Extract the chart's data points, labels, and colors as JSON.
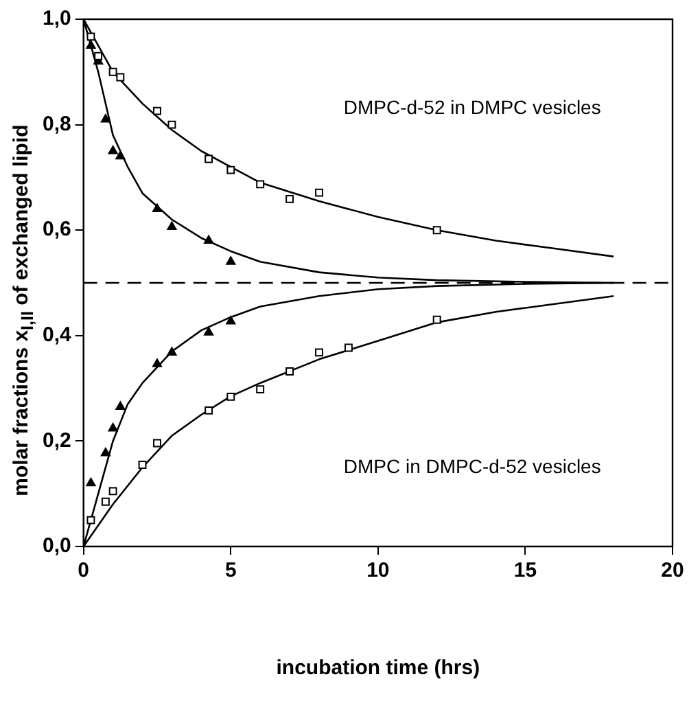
{
  "chart_data": {
    "type": "scatter",
    "xlabel": "incubation time (hrs)",
    "ylabel": "molar fractions x$_{I,II}$ of exchanged lipid",
    "xlim": [
      0,
      20
    ],
    "xticks": [
      0,
      5,
      10,
      15,
      20
    ],
    "ylim": [
      0,
      1
    ],
    "yticks": [
      {
        "value": 0,
        "label": "0,0"
      },
      {
        "value": 0.2,
        "label": "0,2"
      },
      {
        "value": 0.4,
        "label": "0,4"
      },
      {
        "value": 0.6,
        "label": "0,6"
      },
      {
        "value": 0.8,
        "label": "0,8"
      },
      {
        "value": 1,
        "label": "1,0"
      }
    ],
    "grid": false,
    "legend": false,
    "series": [
      {
        "marker": "square",
        "color": "#000000",
        "x": [
          0.25,
          0.5,
          1.0,
          1.25,
          2.5,
          3.0,
          4.25,
          5.0,
          6,
          7,
          8,
          12
        ],
        "values": [
          0.967,
          0.93,
          0.9,
          0.89,
          0.826,
          0.8,
          0.735,
          0.714,
          0.687,
          0.659,
          0.671,
          0.6
        ]
      },
      {
        "marker": "triangle",
        "color": "#000000",
        "x": [
          0.25,
          0.5,
          0.75,
          1.0,
          1.25,
          2.5,
          3.0,
          4.25,
          5.0
        ],
        "values": [
          0.95,
          0.92,
          0.81,
          0.75,
          0.74,
          0.64,
          0.606,
          0.58,
          0.54
        ]
      },
      {
        "marker": "triangle",
        "color": "#000000",
        "x": [
          0.25,
          0.75,
          1.0,
          1.25,
          2.5,
          3.0,
          4.25,
          5.0
        ],
        "values": [
          0.12,
          0.177,
          0.224,
          0.265,
          0.346,
          0.368,
          0.406,
          0.427
        ]
      },
      {
        "marker": "square",
        "color": "#000000",
        "x": [
          0.25,
          0.75,
          1.0,
          2.0,
          2.5,
          4.25,
          5.0,
          6,
          7,
          8,
          9,
          12
        ],
        "values": [
          0.05,
          0.085,
          0.105,
          0.155,
          0.196,
          0.258,
          0.284,
          0.298,
          0.332,
          0.368,
          0.377,
          0.43
        ]
      },
      {
        "type": "line",
        "marker": "none",
        "color": "#000000",
        "x": [
          0,
          0.5,
          1,
          2,
          3,
          4,
          5,
          6,
          8,
          10,
          12,
          14,
          16,
          18
        ],
        "values": [
          1.0,
          0.95,
          0.9,
          0.84,
          0.79,
          0.75,
          0.72,
          0.69,
          0.655,
          0.625,
          0.6,
          0.58,
          0.565,
          0.55
        ]
      },
      {
        "type": "line",
        "marker": "none",
        "color": "#000000",
        "x": [
          0,
          0.5,
          1,
          1.5,
          2,
          3,
          4,
          5,
          6,
          8,
          10,
          12,
          15,
          18
        ],
        "values": [
          1.0,
          0.9,
          0.78,
          0.72,
          0.67,
          0.62,
          0.585,
          0.56,
          0.54,
          0.52,
          0.51,
          0.505,
          0.502,
          0.5
        ]
      },
      {
        "type": "line",
        "marker": "none",
        "color": "#000000",
        "x": [
          0,
          0.5,
          1,
          1.5,
          2,
          3,
          4,
          5,
          6,
          8,
          10,
          12,
          15,
          18
        ],
        "values": [
          0,
          0.1,
          0.2,
          0.27,
          0.31,
          0.37,
          0.41,
          0.435,
          0.455,
          0.475,
          0.488,
          0.494,
          0.498,
          0.5
        ]
      },
      {
        "type": "line",
        "marker": "none",
        "color": "#000000",
        "x": [
          0,
          0.5,
          1,
          2,
          3,
          4,
          5,
          6,
          8,
          10,
          12,
          14,
          16,
          18
        ],
        "values": [
          0,
          0.04,
          0.08,
          0.15,
          0.21,
          0.25,
          0.285,
          0.31,
          0.355,
          0.39,
          0.425,
          0.445,
          0.46,
          0.475
        ]
      }
    ],
    "ref_lines": [
      {
        "axis": "y",
        "value": 0.5,
        "line_style": "dashed",
        "color": "#000000"
      }
    ],
    "annotations": [
      "DMPC-d-52 in DMPC vesicles",
      "DMPC in DMPC-d-52 vesicles"
    ]
  }
}
